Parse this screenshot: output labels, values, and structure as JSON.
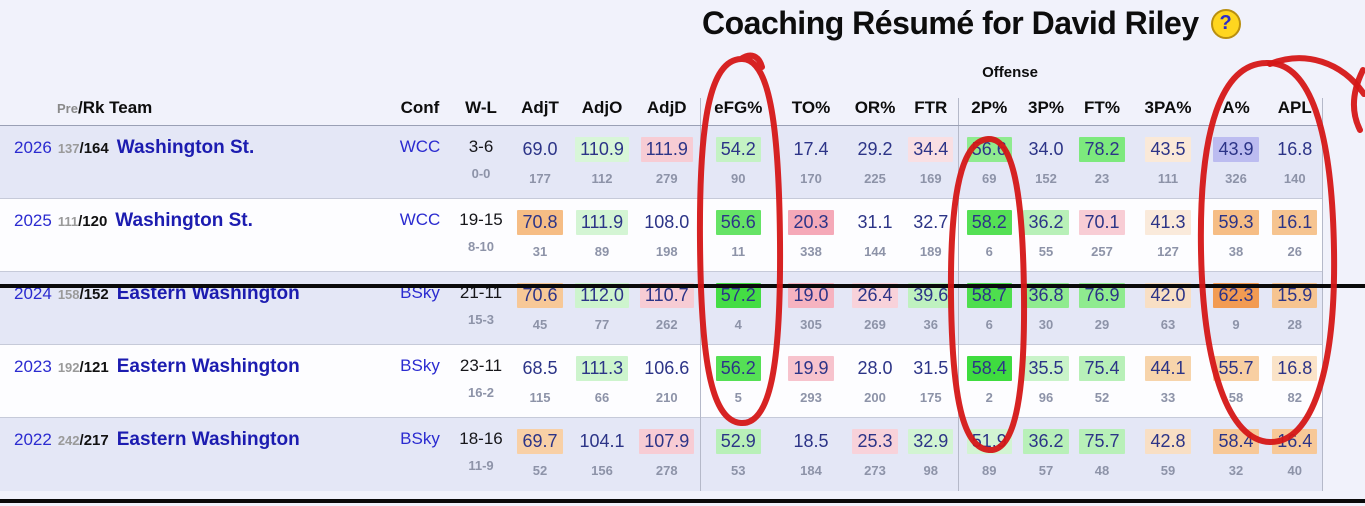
{
  "title": "Coaching Résumé for David Riley",
  "help_icon": "?",
  "group_label": "Offense",
  "header": {
    "pre": "Pre",
    "rk_team": "/Rk Team",
    "conf": "Conf",
    "wl": "W-L",
    "stats": [
      "AdjT",
      "AdjO",
      "AdjD",
      "eFG%",
      "TO%",
      "OR%",
      "FTR",
      "2P%",
      "3P%",
      "FT%",
      "3PA%",
      "A%",
      "APL"
    ]
  },
  "rows": [
    {
      "year": "2026",
      "pre": "137",
      "rk": "164",
      "team": "Washington St.",
      "conf": "WCC",
      "wl": "3-6",
      "conf_wl": "0-0",
      "stats": [
        {
          "v": "69.0",
          "r": "177",
          "c": ""
        },
        {
          "v": "110.9",
          "r": "112",
          "c": "#d8f6d8"
        },
        {
          "v": "111.9",
          "r": "279",
          "c": "#f7ccd4"
        },
        {
          "v": "54.2",
          "r": "90",
          "c": "#c4f2c4"
        },
        {
          "v": "17.4",
          "r": "170",
          "c": ""
        },
        {
          "v": "29.2",
          "r": "225",
          "c": ""
        },
        {
          "v": "34.4",
          "r": "169",
          "c": "#f9dfe3"
        },
        {
          "v": "56.6",
          "r": "69",
          "c": "#8feb8f"
        },
        {
          "v": "34.0",
          "r": "152",
          "c": ""
        },
        {
          "v": "78.2",
          "r": "23",
          "c": "#7de97d"
        },
        {
          "v": "43.5",
          "r": "111",
          "c": "#fae9d8"
        },
        {
          "v": "43.9",
          "r": "326",
          "c": "#bcbcf0"
        },
        {
          "v": "16.8",
          "r": "140",
          "c": ""
        }
      ]
    },
    {
      "year": "2025",
      "pre": "111",
      "rk": "120",
      "team": "Washington St.",
      "conf": "WCC",
      "wl": "19-15",
      "conf_wl": "8-10",
      "stats": [
        {
          "v": "70.8",
          "r": "31",
          "c": "#f6bd85"
        },
        {
          "v": "111.9",
          "r": "89",
          "c": "#d4f5d4"
        },
        {
          "v": "108.0",
          "r": "198",
          "c": ""
        },
        {
          "v": "56.6",
          "r": "11",
          "c": "#66e366"
        },
        {
          "v": "20.3",
          "r": "338",
          "c": "#f5a9b8"
        },
        {
          "v": "31.1",
          "r": "144",
          "c": ""
        },
        {
          "v": "32.7",
          "r": "189",
          "c": ""
        },
        {
          "v": "58.2",
          "r": "6",
          "c": "#55e055"
        },
        {
          "v": "36.2",
          "r": "55",
          "c": "#b8f0b8"
        },
        {
          "v": "70.1",
          "r": "257",
          "c": "#f8cdd5"
        },
        {
          "v": "41.3",
          "r": "127",
          "c": "#faeadb"
        },
        {
          "v": "59.3",
          "r": "38",
          "c": "#f6bd85"
        },
        {
          "v": "16.1",
          "r": "26",
          "c": "#f6c490"
        }
      ]
    },
    {
      "year": "2024",
      "pre": "158",
      "rk": "152",
      "team": "Eastern Washington",
      "conf": "BSky",
      "wl": "21-11",
      "conf_wl": "15-3",
      "stats": [
        {
          "v": "70.6",
          "r": "45",
          "c": "#f7c897"
        },
        {
          "v": "112.0",
          "r": "77",
          "c": "#cdf4cd"
        },
        {
          "v": "110.7",
          "r": "262",
          "c": "#f7ccd4"
        },
        {
          "v": "57.2",
          "r": "4",
          "c": "#44dd44"
        },
        {
          "v": "19.0",
          "r": "305",
          "c": "#f6b3c0"
        },
        {
          "v": "26.4",
          "r": "269",
          "c": "#f8d2da"
        },
        {
          "v": "39.6",
          "r": "36",
          "c": "#bff1bf"
        },
        {
          "v": "58.7",
          "r": "6",
          "c": "#4ede4e"
        },
        {
          "v": "36.8",
          "r": "30",
          "c": "#8feb8f"
        },
        {
          "v": "76.9",
          "r": "29",
          "c": "#8feb8f"
        },
        {
          "v": "42.0",
          "r": "63",
          "c": "#f8dfc4"
        },
        {
          "v": "62.3",
          "r": "9",
          "c": "#f29b52"
        },
        {
          "v": "15.9",
          "r": "28",
          "c": "#f6c490"
        }
      ]
    },
    {
      "year": "2023",
      "pre": "192",
      "rk": "121",
      "team": "Eastern Washington",
      "conf": "BSky",
      "wl": "23-11",
      "conf_wl": "16-2",
      "stats": [
        {
          "v": "68.5",
          "r": "115",
          "c": ""
        },
        {
          "v": "111.3",
          "r": "66",
          "c": "#cdf4cd"
        },
        {
          "v": "106.6",
          "r": "210",
          "c": ""
        },
        {
          "v": "56.2",
          "r": "5",
          "c": "#55e055"
        },
        {
          "v": "19.9",
          "r": "293",
          "c": "#f7c3cd"
        },
        {
          "v": "28.0",
          "r": "200",
          "c": ""
        },
        {
          "v": "31.5",
          "r": "175",
          "c": ""
        },
        {
          "v": "58.4",
          "r": "2",
          "c": "#3fdc3f"
        },
        {
          "v": "35.5",
          "r": "96",
          "c": "#c9f3c9"
        },
        {
          "v": "75.4",
          "r": "52",
          "c": "#b8f0b8"
        },
        {
          "v": "44.1",
          "r": "33",
          "c": "#f7d4ab"
        },
        {
          "v": "55.7",
          "r": "58",
          "c": "#f8cfa2"
        },
        {
          "v": "16.8",
          "r": "82",
          "c": "#fae3c8"
        }
      ]
    },
    {
      "year": "2022",
      "pre": "242",
      "rk": "217",
      "team": "Eastern Washington",
      "conf": "BSky",
      "wl": "18-16",
      "conf_wl": "11-9",
      "stats": [
        {
          "v": "69.7",
          "r": "52",
          "c": "#f8d0a6"
        },
        {
          "v": "104.1",
          "r": "156",
          "c": ""
        },
        {
          "v": "107.9",
          "r": "278",
          "c": "#f7ccd4"
        },
        {
          "v": "52.9",
          "r": "53",
          "c": "#b8f0b8"
        },
        {
          "v": "18.5",
          "r": "184",
          "c": ""
        },
        {
          "v": "25.3",
          "r": "273",
          "c": "#f8d2da"
        },
        {
          "v": "32.9",
          "r": "98",
          "c": "#d2f4d2"
        },
        {
          "v": "51.9",
          "r": "89",
          "c": "#d2f4d2"
        },
        {
          "v": "36.2",
          "r": "57",
          "c": "#b8f0b8"
        },
        {
          "v": "75.7",
          "r": "48",
          "c": "#b8f0b8"
        },
        {
          "v": "42.8",
          "r": "59",
          "c": "#f8dfc4"
        },
        {
          "v": "58.4",
          "r": "32",
          "c": "#f7c897"
        },
        {
          "v": "16.4",
          "r": "40",
          "c": "#f7c897"
        }
      ]
    }
  ],
  "annotations": {
    "color": "#d51717",
    "circled_columns": [
      "eFG%",
      "2P%",
      "A%",
      "APL"
    ]
  }
}
